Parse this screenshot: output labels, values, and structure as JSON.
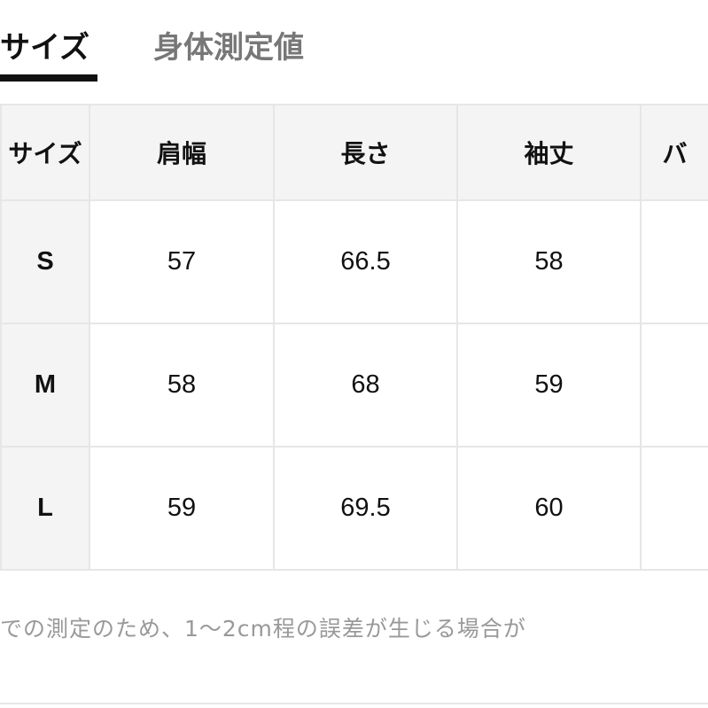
{
  "tabs": [
    {
      "label": "サイズ",
      "active": true
    },
    {
      "label": "身体測定値",
      "active": false
    }
  ],
  "table": {
    "headers": [
      "サイズ",
      "肩幅",
      "長さ",
      "袖丈",
      "バ"
    ],
    "rows": [
      [
        "S",
        "57",
        "66.5",
        "58",
        ""
      ],
      [
        "M",
        "58",
        "68",
        "59",
        ""
      ],
      [
        "L",
        "59",
        "69.5",
        "60",
        ""
      ]
    ]
  },
  "note": "での測定のため、1〜2cm程の誤差が生じる場合が"
}
